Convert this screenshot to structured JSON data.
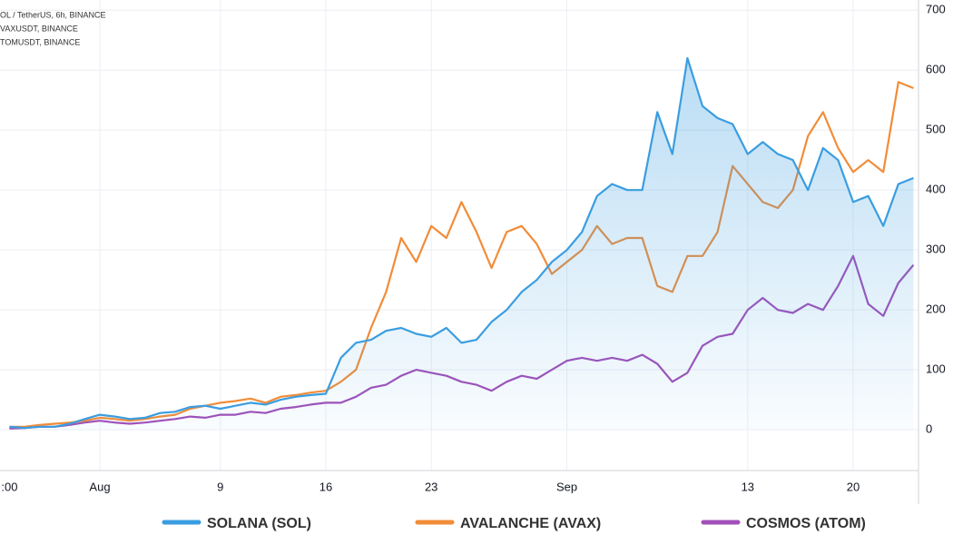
{
  "chart_data": {
    "type": "line",
    "symbols": [
      "OL / TetherUS, 6h, BINANCE",
      "VAXUSDT, BINANCE",
      "TOMUSDT, BINANCE"
    ],
    "categories": [
      ":00",
      null,
      null,
      null,
      null,
      null,
      "Aug",
      null,
      null,
      null,
      null,
      null,
      null,
      null,
      "9",
      null,
      null,
      null,
      null,
      null,
      null,
      "16",
      null,
      null,
      null,
      null,
      null,
      null,
      "23",
      null,
      null,
      null,
      null,
      null,
      null,
      null,
      null,
      "Sep",
      null,
      null,
      null,
      null,
      null,
      null,
      null,
      null,
      null,
      null,
      null,
      "13",
      null,
      null,
      null,
      null,
      null,
      null,
      "20",
      null,
      null,
      null,
      null
    ],
    "series": [
      {
        "name": "SOLANA (SOL)",
        "color": "#3a9de0",
        "fill": true,
        "values": [
          5,
          3,
          5,
          5,
          10,
          18,
          25,
          22,
          18,
          20,
          28,
          30,
          38,
          40,
          35,
          40,
          45,
          42,
          50,
          55,
          58,
          60,
          120,
          145,
          150,
          165,
          170,
          160,
          155,
          170,
          145,
          150,
          180,
          200,
          230,
          250,
          280,
          300,
          330,
          390,
          410,
          400,
          400,
          530,
          460,
          620,
          540,
          520,
          510,
          460,
          480,
          460,
          450,
          400,
          470,
          450,
          380,
          390,
          340,
          410,
          420
        ]
      },
      {
        "name": "AVALANCHE (AVAX)",
        "color": "#f28c38",
        "values": [
          5,
          5,
          8,
          10,
          12,
          15,
          20,
          18,
          15,
          18,
          22,
          25,
          35,
          40,
          45,
          48,
          52,
          45,
          55,
          58,
          62,
          65,
          80,
          100,
          170,
          230,
          320,
          280,
          340,
          320,
          380,
          330,
          270,
          330,
          340,
          310,
          260,
          280,
          300,
          340,
          310,
          320,
          320,
          240,
          230,
          290,
          290,
          330,
          440,
          410,
          380,
          370,
          400,
          490,
          530,
          470,
          430,
          450,
          430,
          580,
          570
        ]
      },
      {
        "name": "COSMOS (ATOM)",
        "color": "#a24fb8",
        "values": [
          2,
          3,
          5,
          5,
          8,
          12,
          15,
          12,
          10,
          12,
          15,
          18,
          22,
          20,
          25,
          25,
          30,
          28,
          35,
          38,
          42,
          45,
          45,
          55,
          70,
          75,
          90,
          100,
          95,
          90,
          80,
          75,
          65,
          80,
          90,
          85,
          100,
          115,
          120,
          115,
          120,
          115,
          125,
          110,
          80,
          95,
          140,
          155,
          160,
          200,
          220,
          200,
          195,
          210,
          200,
          240,
          290,
          210,
          190,
          245,
          275
        ]
      }
    ],
    "ylim": [
      -68,
      717
    ],
    "yticks": [
      0,
      100,
      200,
      300,
      400,
      500,
      600,
      700
    ],
    "grid": true
  }
}
